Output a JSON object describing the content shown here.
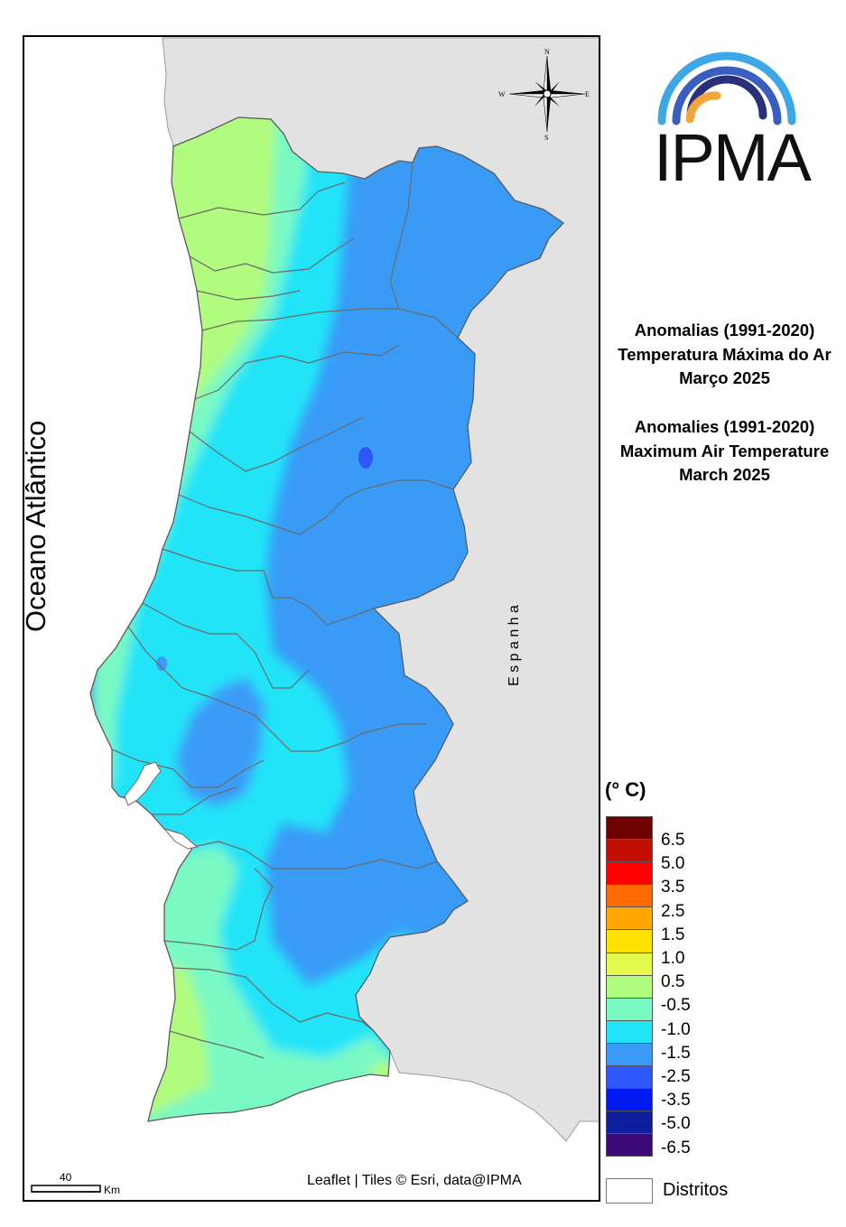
{
  "map": {
    "ocean_label": "Oceano Atlântico",
    "country_label": "E s p a n h a",
    "attribution": "Leaflet | Tiles © Esri, data@IPMA",
    "scale_value": "40",
    "scale_unit": "Km",
    "compass": {
      "n": "N",
      "s": "S",
      "e": "E",
      "w": "W"
    },
    "colors": {
      "land_outside": "#e2e2e2",
      "sea": "#ffffff",
      "district_border": "#6a6a6a"
    }
  },
  "logo": {
    "text": "IPMA",
    "arc_colors": [
      "#3ea7e6",
      "#3a5dbf",
      "#2a2f7a",
      "#f2a53a"
    ]
  },
  "title_pt": {
    "line1": "Anomalias (1991-2020)",
    "line2": "Temperatura Máxima do Ar",
    "line3": "Março 2025"
  },
  "title_en": {
    "line1": "Anomalies (1991-2020)",
    "line2": "Maximum Air Temperature",
    "line3": "March 2025"
  },
  "legend": {
    "title": "(° C)",
    "colors": [
      "#6e0000",
      "#c30f00",
      "#ff0000",
      "#ff6a00",
      "#ffa600",
      "#ffe100",
      "#e5f84c",
      "#b1fb7e",
      "#7af9c3",
      "#22e4f8",
      "#3a9bf7",
      "#2e57fb",
      "#0019f0",
      "#0f1e9c",
      "#3b0a78"
    ],
    "labels": [
      "6.5",
      "5.0",
      "3.5",
      "2.5",
      "1.5",
      "1.0",
      "0.5",
      "-0.5",
      "-1.0",
      "-1.5",
      "-2.5",
      "-3.5",
      "-5.0",
      "-6.5"
    ],
    "boundary_label": "Distritos"
  }
}
